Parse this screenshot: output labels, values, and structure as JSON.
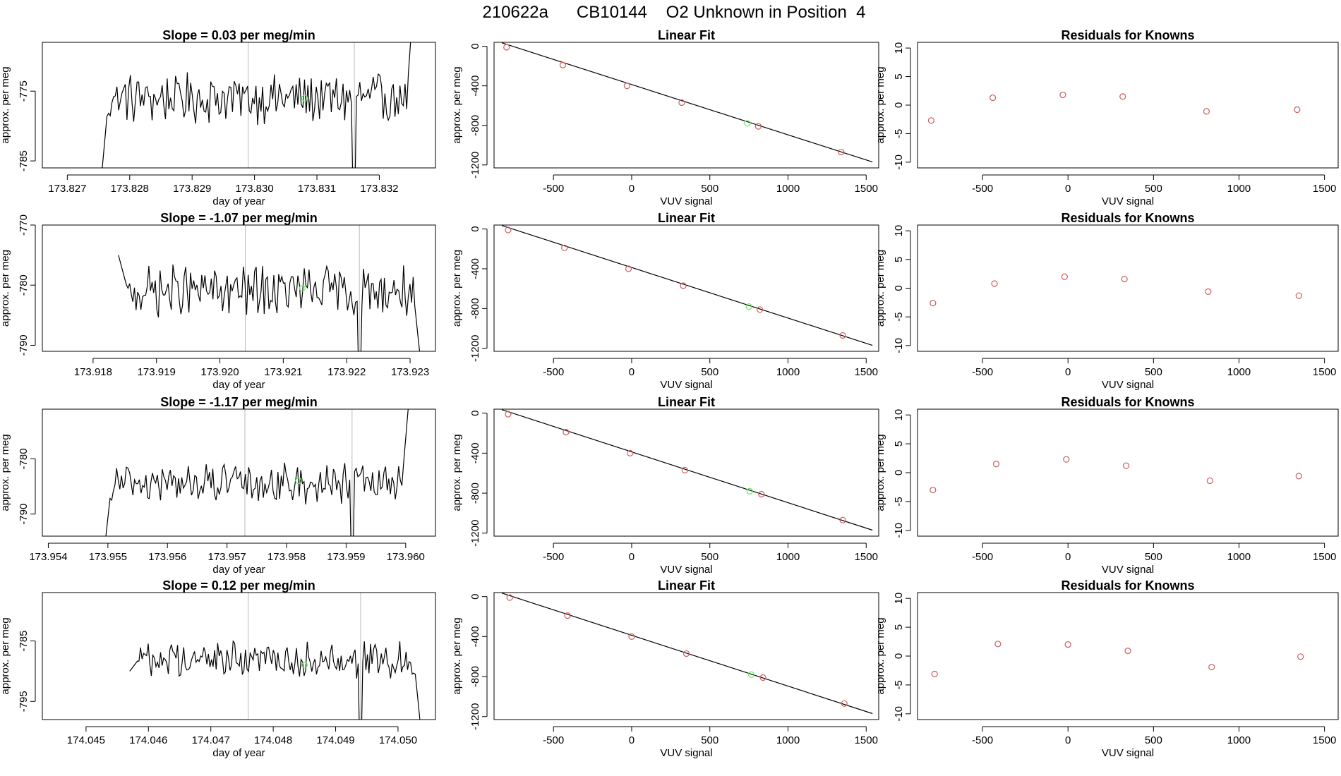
{
  "figure": {
    "title": "210622a      CB10144    O2 Unknown in Position  4"
  },
  "colors": {
    "line": "#000000",
    "known": "#cd5c5c",
    "unknown": "#66ee66",
    "vline": "#bbbbbb"
  },
  "chart_data": [
    {
      "type": "line",
      "row": 0,
      "panel": "time-series",
      "title": "Slope =  0.03  per meg/min",
      "xlabel": "day of year",
      "ylabel": "approx. per meg",
      "xlim": [
        173.8266,
        173.8329
      ],
      "ylim": [
        -786,
        -768
      ],
      "xticks": [
        173.827,
        173.828,
        173.829,
        173.83,
        173.831,
        173.832
      ],
      "xtick_labels": [
        "173.827",
        "173.828",
        "173.829",
        "173.830",
        "173.831",
        "173.832"
      ],
      "yticks": [
        -785,
        -775
      ],
      "ytick_labels": [
        "-785",
        "-775"
      ],
      "vlines": [
        173.8299,
        173.8316
      ],
      "start": 173.8275,
      "end": 173.8326,
      "level": -776,
      "amp": 3,
      "drop": 2,
      "mid_marker": {
        "x": 173.8308,
        "y": -776
      }
    },
    {
      "type": "scatter",
      "row": 0,
      "panel": "linear-fit",
      "title": "Linear Fit",
      "xlabel": "VUV signal",
      "ylabel": "approx. per meg",
      "xlim": [
        -880,
        1580
      ],
      "ylim": [
        -1230,
        40
      ],
      "xticks": [
        -500,
        0,
        500,
        1000,
        1500
      ],
      "xtick_labels": [
        "-500",
        "0",
        "500",
        "1000",
        "1500"
      ],
      "yticks": [
        0,
        -400,
        -800,
        -1200
      ],
      "ytick_labels": [
        "0",
        "-400",
        "-800",
        "-1200"
      ],
      "fit": {
        "x0": -830,
        "y0": 35,
        "x1": 1540,
        "y1": -1170
      },
      "knowns": {
        "x": [
          -800,
          -440,
          -30,
          320,
          810,
          1340
        ],
        "y": [
          -10,
          -190,
          -400,
          -570,
          -810,
          -1070
        ]
      },
      "unknown": {
        "x": 740,
        "y": -780
      }
    },
    {
      "type": "scatter",
      "row": 0,
      "panel": "residuals",
      "title": "Residuals for Knowns",
      "xlabel": "VUV signal",
      "ylabel": "approx. per meg",
      "xlim": [
        -880,
        1580
      ],
      "ylim": [
        -11,
        11
      ],
      "xticks": [
        -500,
        0,
        500,
        1000,
        1500
      ],
      "xtick_labels": [
        "-500",
        "0",
        "500",
        "1000",
        "1500"
      ],
      "yticks": [
        10,
        5,
        0,
        -5,
        -10
      ],
      "ytick_labels": [
        "10",
        "5",
        "0",
        "-5",
        "-10"
      ],
      "points": {
        "x": [
          -800,
          -440,
          -30,
          320,
          810,
          1340
        ],
        "y": [
          -2.7,
          1.3,
          1.8,
          1.5,
          -1.1,
          -0.8
        ]
      }
    },
    {
      "type": "line",
      "row": 1,
      "panel": "time-series",
      "title": "Slope =  -1.07  per meg/min",
      "xlabel": "day of year",
      "ylabel": "approx. per meg",
      "xlim": [
        173.9172,
        173.9234
      ],
      "ylim": [
        -791,
        -770
      ],
      "xticks": [
        173.918,
        173.919,
        173.92,
        173.921,
        173.922,
        173.923
      ],
      "xtick_labels": [
        "173.918",
        "173.919",
        "173.920",
        "173.921",
        "173.922",
        "173.923"
      ],
      "yticks": [
        -770,
        -780,
        -790
      ],
      "ytick_labels": [
        "-770",
        "-780",
        "-790"
      ],
      "vlines": [
        173.9204,
        173.9222
      ],
      "start": 173.9184,
      "end": 173.9232,
      "level": -781,
      "amp": 3.5,
      "drop": 1,
      "mid_marker": {
        "x": 173.9213,
        "y": -780.5
      }
    },
    {
      "type": "scatter",
      "row": 1,
      "panel": "linear-fit",
      "title": "Linear Fit",
      "xlabel": "VUV signal",
      "ylabel": "approx. per meg",
      "xlim": [
        -880,
        1580
      ],
      "ylim": [
        -1230,
        40
      ],
      "xticks": [
        -500,
        0,
        500,
        1000,
        1500
      ],
      "xtick_labels": [
        "-500",
        "0",
        "500",
        "1000",
        "1500"
      ],
      "yticks": [
        0,
        -400,
        -800,
        -1200
      ],
      "ytick_labels": [
        "0",
        "-400",
        "-800",
        "-1200"
      ],
      "fit": {
        "x0": -830,
        "y0": 35,
        "x1": 1540,
        "y1": -1170
      },
      "knowns": {
        "x": [
          -790,
          -430,
          -20,
          330,
          820,
          1350
        ],
        "y": [
          -10,
          -190,
          -400,
          -570,
          -810,
          -1070
        ]
      },
      "unknown": {
        "x": 750,
        "y": -780
      }
    },
    {
      "type": "scatter",
      "row": 1,
      "panel": "residuals",
      "title": "Residuals for Knowns",
      "xlabel": "VUV signal",
      "ylabel": "approx. per meg",
      "xlim": [
        -880,
        1580
      ],
      "ylim": [
        -11,
        11
      ],
      "xticks": [
        -500,
        0,
        500,
        1000,
        1500
      ],
      "xtick_labels": [
        "-500",
        "0",
        "500",
        "1000",
        "1500"
      ],
      "yticks": [
        10,
        5,
        0,
        -5,
        -10
      ],
      "ytick_labels": [
        "10",
        "5",
        "0",
        "-5",
        "-10"
      ],
      "points": {
        "x": [
          -790,
          -430,
          -20,
          330,
          820,
          1350
        ],
        "y": [
          -2.6,
          0.8,
          2.0,
          1.6,
          -0.6,
          -1.3
        ]
      }
    },
    {
      "type": "line",
      "row": 2,
      "panel": "time-series",
      "title": "Slope =  -1.17  per meg/min",
      "xlabel": "day of year",
      "ylabel": "approx. per meg",
      "xlim": [
        173.9539,
        173.9605
      ],
      "ylim": [
        -794,
        -771
      ],
      "xticks": [
        173.954,
        173.955,
        173.956,
        173.957,
        173.958,
        173.959,
        173.96
      ],
      "xtick_labels": [
        "173.954",
        "173.955",
        "173.956",
        "173.957",
        "173.958",
        "173.959",
        "173.960"
      ],
      "yticks": [
        -780,
        -790
      ],
      "ytick_labels": [
        "-780",
        "-790"
      ],
      "vlines": [
        173.9573,
        173.9591
      ],
      "start": 173.9549,
      "end": 173.9601,
      "level": -784.5,
      "amp": 3,
      "drop": 2,
      "mid_marker": {
        "x": 173.9582,
        "y": -784
      }
    },
    {
      "type": "scatter",
      "row": 2,
      "panel": "linear-fit",
      "title": "Linear Fit",
      "xlabel": "VUV signal",
      "ylabel": "approx. per meg",
      "xlim": [
        -880,
        1580
      ],
      "ylim": [
        -1230,
        40
      ],
      "xticks": [
        -500,
        0,
        500,
        1000,
        1500
      ],
      "xtick_labels": [
        "-500",
        "0",
        "500",
        "1000",
        "1500"
      ],
      "yticks": [
        0,
        -400,
        -800,
        -1200
      ],
      "ytick_labels": [
        "0",
        "-400",
        "-800",
        "-1200"
      ],
      "fit": {
        "x0": -830,
        "y0": 35,
        "x1": 1540,
        "y1": -1170
      },
      "knowns": {
        "x": [
          -790,
          -420,
          -10,
          340,
          830,
          1350
        ],
        "y": [
          -10,
          -190,
          -400,
          -570,
          -810,
          -1070
        ]
      },
      "unknown": {
        "x": 755,
        "y": -780
      }
    },
    {
      "type": "scatter",
      "row": 2,
      "panel": "residuals",
      "title": "Residuals for Knowns",
      "xlabel": "VUV signal",
      "ylabel": "approx. per meg",
      "xlim": [
        -880,
        1580
      ],
      "ylim": [
        -11,
        11
      ],
      "xticks": [
        -500,
        0,
        500,
        1000,
        1500
      ],
      "xtick_labels": [
        "-500",
        "0",
        "500",
        "1000",
        "1500"
      ],
      "yticks": [
        10,
        5,
        0,
        -5,
        -10
      ],
      "ytick_labels": [
        "10",
        "5",
        "0",
        "-5",
        "-10"
      ],
      "points": {
        "x": [
          -790,
          -420,
          -10,
          340,
          830,
          1350
        ],
        "y": [
          -3.0,
          1.5,
          2.3,
          1.2,
          -1.4,
          -0.6
        ]
      }
    },
    {
      "type": "line",
      "row": 3,
      "panel": "time-series",
      "title": "Slope =  0.12  per meg/min",
      "xlabel": "day of year",
      "ylabel": "approx. per meg",
      "xlim": [
        174.0443,
        174.0506
      ],
      "ylim": [
        -798,
        -777
      ],
      "xticks": [
        174.045,
        174.046,
        174.047,
        174.048,
        174.049,
        174.05
      ],
      "xtick_labels": [
        "174.045",
        "174.046",
        "174.047",
        "174.048",
        "174.049",
        "174.050"
      ],
      "yticks": [
        -785,
        -795
      ],
      "ytick_labels": [
        "-785",
        "-795"
      ],
      "vlines": [
        174.0476,
        174.0494
      ],
      "start": 174.0457,
      "end": 174.0504,
      "level": -788,
      "amp": 2.5,
      "drop": 3,
      "mid_marker": {
        "x": 174.0485,
        "y": -789
      }
    },
    {
      "type": "scatter",
      "row": 3,
      "panel": "linear-fit",
      "title": "Linear Fit",
      "xlabel": "VUV signal",
      "ylabel": "approx. per meg",
      "xlim": [
        -880,
        1580
      ],
      "ylim": [
        -1230,
        40
      ],
      "xticks": [
        -500,
        0,
        500,
        1000,
        1500
      ],
      "xtick_labels": [
        "-500",
        "0",
        "500",
        "1000",
        "1500"
      ],
      "yticks": [
        0,
        -400,
        -800,
        -1200
      ],
      "ytick_labels": [
        "0",
        "-400",
        "-800",
        "-1200"
      ],
      "fit": {
        "x0": -830,
        "y0": 35,
        "x1": 1540,
        "y1": -1170
      },
      "knowns": {
        "x": [
          -780,
          -410,
          0,
          350,
          840,
          1360
        ],
        "y": [
          -10,
          -190,
          -400,
          -570,
          -810,
          -1070
        ]
      },
      "unknown": {
        "x": 765,
        "y": -780
      }
    },
    {
      "type": "scatter",
      "row": 3,
      "panel": "residuals",
      "title": "Residuals for Knowns",
      "xlabel": "VUV signal",
      "ylabel": "approx. per meg",
      "xlim": [
        -880,
        1580
      ],
      "ylim": [
        -11,
        11
      ],
      "xticks": [
        -500,
        0,
        500,
        1000,
        1500
      ],
      "xtick_labels": [
        "-500",
        "0",
        "500",
        "1000",
        "1500"
      ],
      "yticks": [
        10,
        5,
        0,
        -5,
        -10
      ],
      "ytick_labels": [
        "10",
        "5",
        "0",
        "-5",
        "-10"
      ],
      "points": {
        "x": [
          -780,
          -410,
          0,
          350,
          840,
          1360
        ],
        "y": [
          -3.1,
          2.1,
          2.0,
          0.9,
          -1.9,
          -0.1
        ]
      }
    }
  ]
}
